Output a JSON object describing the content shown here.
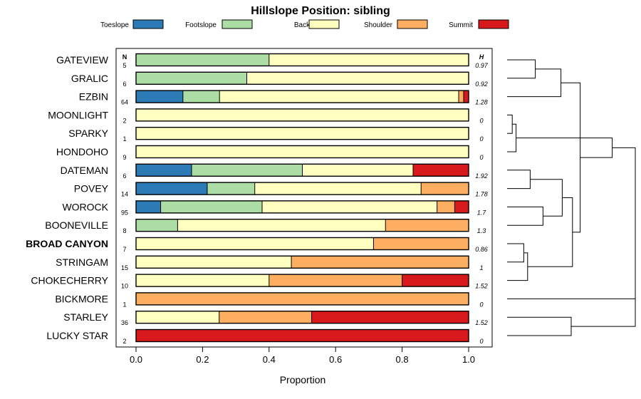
{
  "chart_data": {
    "type": "bar",
    "orientation": "horizontal",
    "stacked": true,
    "title": "Hillslope Position: sibling",
    "xlabel": "Proportion",
    "xlim": [
      0,
      1
    ],
    "x_ticks": [
      "0.0",
      "0.2",
      "0.4",
      "0.6",
      "0.8",
      "1.0"
    ],
    "n_header": "N",
    "h_header": "H",
    "legend_position": "top",
    "series": [
      {
        "name": "Toeslope",
        "color": "#2c7bb6"
      },
      {
        "name": "Footslope",
        "color": "#abdda4"
      },
      {
        "name": "Backslope",
        "color": "#ffffbf"
      },
      {
        "name": "Shoulder",
        "color": "#fdae61"
      },
      {
        "name": "Summit",
        "color": "#d7191c"
      }
    ],
    "rows": [
      {
        "label": "GATEVIEW",
        "n": "5",
        "h": "0.97",
        "bold": false,
        "values": [
          0,
          0.4,
          0.6,
          0,
          0
        ]
      },
      {
        "label": "GRALIC",
        "n": "6",
        "h": "0.92",
        "bold": false,
        "values": [
          0,
          0.333,
          0.667,
          0,
          0
        ]
      },
      {
        "label": "EZBIN",
        "n": "64",
        "h": "1.28",
        "bold": false,
        "values": [
          0.141,
          0.11,
          0.719,
          0.015,
          0.015
        ]
      },
      {
        "label": "MOONLIGHT",
        "n": "2",
        "h": "0",
        "bold": false,
        "values": [
          0,
          0,
          1,
          0,
          0
        ]
      },
      {
        "label": "SPARKY",
        "n": "1",
        "h": "0",
        "bold": false,
        "values": [
          0,
          0,
          1,
          0,
          0
        ]
      },
      {
        "label": "HONDOHO",
        "n": "9",
        "h": "0",
        "bold": false,
        "values": [
          0,
          0,
          1,
          0,
          0
        ]
      },
      {
        "label": "DATEMAN",
        "n": "6",
        "h": "1.92",
        "bold": false,
        "values": [
          0.167,
          0.333,
          0.333,
          0,
          0.167
        ]
      },
      {
        "label": "POVEY",
        "n": "14",
        "h": "1.78",
        "bold": false,
        "values": [
          0.214,
          0.143,
          0.5,
          0.143,
          0
        ]
      },
      {
        "label": "WOROCK",
        "n": "95",
        "h": "1.7",
        "bold": false,
        "values": [
          0.074,
          0.305,
          0.526,
          0.053,
          0.042
        ]
      },
      {
        "label": "BOONEVILLE",
        "n": "8",
        "h": "1.3",
        "bold": false,
        "values": [
          0,
          0.125,
          0.625,
          0.25,
          0
        ]
      },
      {
        "label": "BROAD CANYON",
        "n": "7",
        "h": "0.86",
        "bold": true,
        "values": [
          0,
          0,
          0.714,
          0.286,
          0
        ]
      },
      {
        "label": "STRINGAM",
        "n": "15",
        "h": "1",
        "bold": false,
        "values": [
          0,
          0,
          0.467,
          0.533,
          0
        ]
      },
      {
        "label": "CHOKECHERRY",
        "n": "10",
        "h": "1.52",
        "bold": false,
        "values": [
          0,
          0,
          0.4,
          0.4,
          0.2
        ]
      },
      {
        "label": "BICKMORE",
        "n": "1",
        "h": "0",
        "bold": false,
        "values": [
          0,
          0,
          0,
          1,
          0
        ]
      },
      {
        "label": "STARLEY",
        "n": "36",
        "h": "1.52",
        "bold": false,
        "values": [
          0,
          0,
          0.25,
          0.278,
          0.472
        ]
      },
      {
        "label": "LUCKY STAR",
        "n": "2",
        "h": "0",
        "bold": false,
        "values": [
          0,
          0,
          0,
          0,
          1
        ]
      }
    ],
    "dendrogram": {
      "nodes": [
        {
          "a": 0,
          "b": 1,
          "height": 0.22
        },
        {
          "a": 3,
          "b": 4,
          "height": 0.04
        },
        {
          "a": "n1",
          "b": 5,
          "height": 0.07
        },
        {
          "a": "n0",
          "b": 2,
          "height": 0.42
        },
        {
          "a": 6,
          "b": 7,
          "height": 0.18
        },
        {
          "a": 8,
          "b": 9,
          "height": 0.28
        },
        {
          "a": "n4",
          "b": "n5",
          "height": 0.43
        },
        {
          "a": 10,
          "b": 11,
          "height": 0.13
        },
        {
          "a": "n7",
          "b": 12,
          "height": 0.16
        },
        {
          "a": "n6",
          "b": "n8",
          "height": 0.51
        },
        {
          "a": "n3",
          "b": "n9",
          "height": 0.57
        },
        {
          "a": 14,
          "b": 15,
          "height": 0.5
        },
        {
          "a": "n2",
          "b": "n10",
          "height": 0.82
        },
        {
          "a": 13,
          "b": "n11",
          "height": 1.0
        },
        {
          "a": "n12",
          "b": "n13",
          "height": 1.0
        }
      ]
    }
  }
}
